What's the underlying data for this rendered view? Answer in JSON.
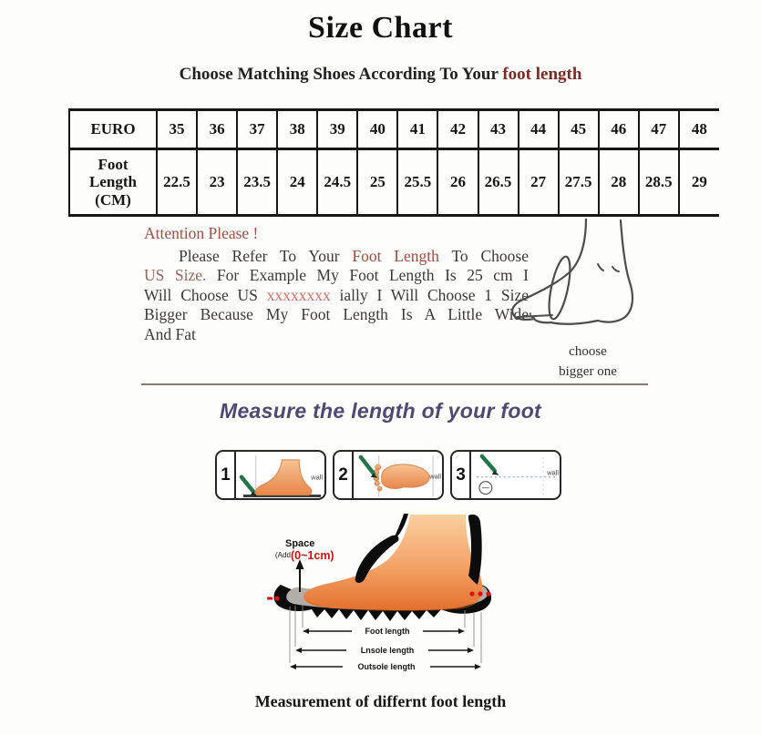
{
  "title": "Size Chart",
  "subtitle": {
    "prefix": "Choose Matching Shoes According To Your ",
    "highlight": "foot length"
  },
  "size_table": {
    "row1_header": "EURO",
    "row2_header": "Foot Length (CM)",
    "euro_sizes": [
      "35",
      "36",
      "37",
      "38",
      "39",
      "40",
      "41",
      "42",
      "43",
      "44",
      "45",
      "46",
      "47",
      "48"
    ],
    "foot_lengths_cm": [
      "22.5",
      "23",
      "23.5",
      "24",
      "24.5",
      "25",
      "25.5",
      "26",
      "26.5",
      "27",
      "27.5",
      "28",
      "28.5",
      "29"
    ]
  },
  "attention": {
    "heading": "Attention Please !",
    "lines": [
      {
        "segments": [
          {
            "text": "Please Refer To Your ",
            "style": "normal"
          },
          {
            "text": "Foot Length",
            "style": "red"
          },
          {
            "text": " To Choose",
            "style": "normal"
          }
        ]
      },
      {
        "segments": [
          {
            "text": "US Size.",
            "style": "ussize"
          },
          {
            "text": " For Example My Foot Length Is 25 cm I",
            "style": "normal"
          }
        ]
      },
      {
        "segments": [
          {
            "text": "Will Choose US ",
            "style": "normal"
          },
          {
            "text": "xxxxxxxx",
            "style": "pink"
          },
          {
            "text": " ially I Will Choose 1 Size",
            "style": "normal"
          }
        ]
      },
      {
        "segments": [
          {
            "text": "Bigger Because My Foot Length Is A Little Wide",
            "style": "normal"
          }
        ]
      },
      {
        "segments": [
          {
            "text": "And Fat",
            "style": "normal"
          }
        ]
      }
    ],
    "sketch_caption_line1": "choose",
    "sketch_caption_line2": "bigger one"
  },
  "measure_section": {
    "heading": "Measure the length of your foot"
  },
  "panels": [
    {
      "number": "1",
      "wall_label": "wall"
    },
    {
      "number": "2",
      "wall_label": "wall"
    },
    {
      "number": "3",
      "wall_label": "wall"
    }
  ],
  "shoe_diagram": {
    "space_label": "Space",
    "space_sub_label": "(Add",
    "space_value": "(0~1cm)",
    "measurements": [
      "Foot length",
      "Lnsole length",
      "Outsole length"
    ]
  },
  "footer_caption": "Measurement of differnt foot length",
  "colors": {
    "accent_maroon": "#7c2a23",
    "attention_red": "#a0493c",
    "highlight_pink": "#cd6f64",
    "heading_purple": "#4f4870",
    "pen_green": "#23764a",
    "skin_orange": "#ef8c4a"
  }
}
